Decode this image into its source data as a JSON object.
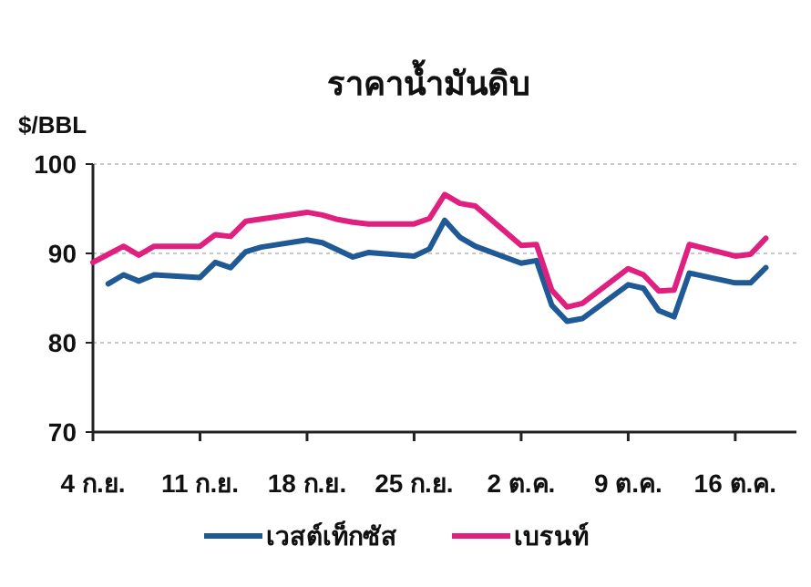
{
  "chart_data": {
    "type": "line",
    "title": "ราคาน้ำมันดิบ",
    "ylabel": "$/BBL",
    "xlim": [
      "--09-04",
      "--10-20"
    ],
    "xticks": [
      {
        "value": "--09-04",
        "label": "4 ก.ย."
      },
      {
        "value": "--09-11",
        "label": "11 ก.ย."
      },
      {
        "value": "--09-18",
        "label": "18 ก.ย."
      },
      {
        "value": "--09-25",
        "label": "25 ก.ย."
      },
      {
        "value": "--10-02",
        "label": "2 ต.ค."
      },
      {
        "value": "--10-09",
        "label": "9 ต.ค."
      },
      {
        "value": "--10-16",
        "label": "16 ต.ค."
      }
    ],
    "ylim": [
      70,
      100
    ],
    "yticks": [
      70,
      80,
      90,
      100
    ],
    "grid": "y",
    "legend": "bottom",
    "marker": "none",
    "line_style": "solid",
    "series": [
      {
        "name": "เวสต์เท็กซัส",
        "color": "#1f5a96",
        "x": [
          "--09-05",
          "--09-06",
          "--09-07",
          "--09-08",
          "--09-11",
          "--09-12",
          "--09-13",
          "--09-14",
          "--09-15",
          "--09-18",
          "--09-19",
          "--09-21",
          "--09-22",
          "--09-25",
          "--09-26",
          "--09-27",
          "--09-28",
          "--09-29",
          "--10-02",
          "--10-03",
          "--10-04",
          "--10-05",
          "--10-06",
          "--10-09",
          "--10-10",
          "--10-11",
          "--10-12",
          "--10-13",
          "--10-16",
          "--10-17",
          "--10-18"
        ],
        "values": [
          86.6,
          87.6,
          86.9,
          87.6,
          87.3,
          89.0,
          88.4,
          90.2,
          90.7,
          91.5,
          91.2,
          89.6,
          90.1,
          89.7,
          90.5,
          93.7,
          91.8,
          90.8,
          88.9,
          89.2,
          84.2,
          82.4,
          82.7,
          86.5,
          86.1,
          83.6,
          82.9,
          87.8,
          86.7,
          86.7,
          88.4
        ]
      },
      {
        "name": "เบรนท์",
        "color": "#e0207f",
        "x": [
          "--09-04",
          "--09-05",
          "--09-06",
          "--09-07",
          "--09-08",
          "--09-11",
          "--09-12",
          "--09-13",
          "--09-14",
          "--09-18",
          "--09-19",
          "--09-20",
          "--09-21",
          "--09-22",
          "--09-25",
          "--09-26",
          "--09-27",
          "--09-28",
          "--09-29",
          "--10-02",
          "--10-03",
          "--10-04",
          "--10-05",
          "--10-06",
          "--10-09",
          "--10-10",
          "--10-11",
          "--10-12",
          "--10-13",
          "--10-16",
          "--10-17",
          "--10-18"
        ],
        "values": [
          89.0,
          89.9,
          90.8,
          89.8,
          90.8,
          90.8,
          92.1,
          91.9,
          93.6,
          94.6,
          94.3,
          93.8,
          93.5,
          93.3,
          93.3,
          93.9,
          96.6,
          95.6,
          95.3,
          90.9,
          91.0,
          85.9,
          84.0,
          84.4,
          88.3,
          87.6,
          85.8,
          85.9,
          91.0,
          89.7,
          89.9,
          91.7
        ]
      }
    ]
  }
}
